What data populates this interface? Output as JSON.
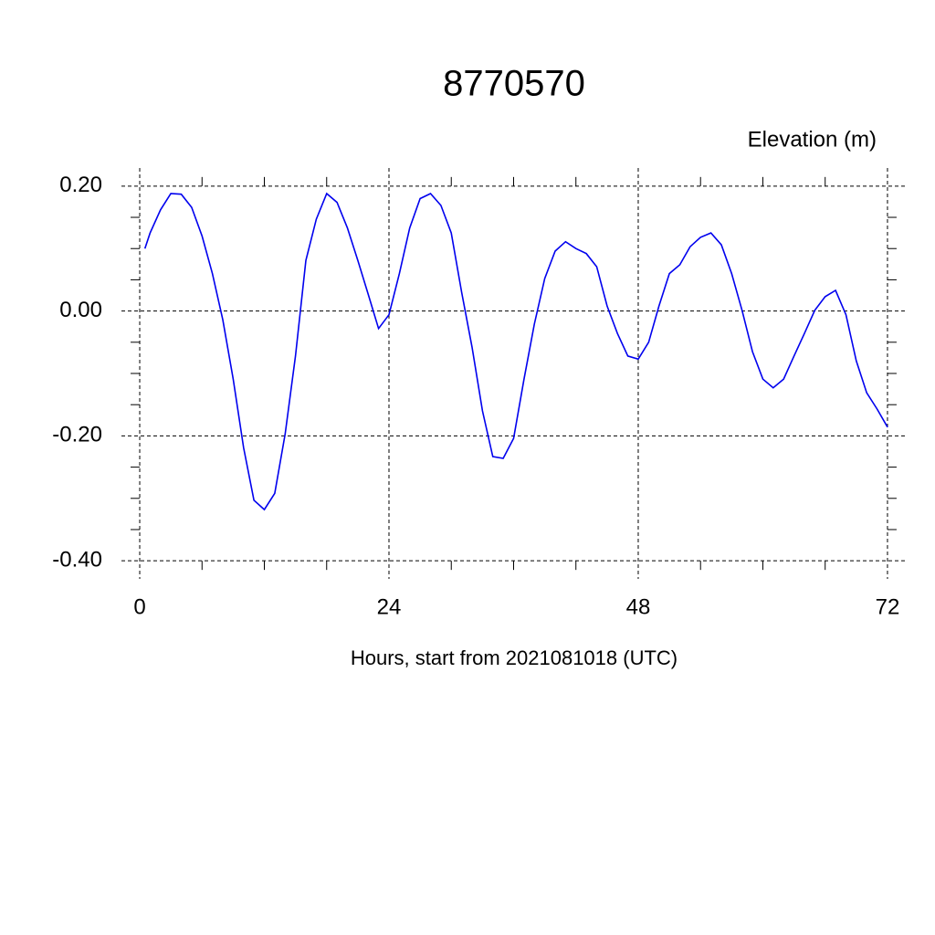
{
  "chart_data": {
    "type": "line",
    "title": "8770570",
    "y_axis_label": "Elevation (m)",
    "x_axis_label": "Hours, start from 2021081018 (UTC)",
    "x": [
      0.5,
      1,
      2,
      3,
      4,
      5,
      6,
      7,
      8,
      9,
      10,
      11,
      12,
      13,
      14,
      15,
      16,
      17,
      18,
      19,
      20,
      21,
      22,
      23,
      24,
      25,
      26,
      27,
      28,
      29,
      30,
      31,
      32,
      33,
      34,
      35,
      36,
      37,
      38,
      39,
      40,
      41,
      42,
      43,
      44,
      45,
      46,
      47,
      48,
      49,
      50,
      51,
      52,
      53,
      54,
      55,
      56,
      57,
      58,
      59,
      60,
      61,
      62,
      63,
      64,
      65,
      66,
      67,
      68,
      69,
      70,
      71,
      72
    ],
    "series": [
      {
        "name": "Elevation",
        "color": "#0000ee",
        "values": [
          0.1,
          0.125,
          0.162,
          0.188,
          0.187,
          0.166,
          0.12,
          0.06,
          -0.014,
          -0.109,
          -0.219,
          -0.303,
          -0.318,
          -0.292,
          -0.197,
          -0.072,
          0.081,
          0.147,
          0.188,
          0.174,
          0.133,
          0.081,
          0.027,
          -0.028,
          -0.006,
          0.06,
          0.133,
          0.18,
          0.188,
          0.169,
          0.125,
          0.03,
          -0.058,
          -0.16,
          -0.233,
          -0.236,
          -0.204,
          -0.109,
          -0.021,
          0.052,
          0.096,
          0.111,
          0.1,
          0.092,
          0.071,
          0.008,
          -0.036,
          -0.072,
          -0.077,
          -0.05,
          0.008,
          0.06,
          0.074,
          0.103,
          0.118,
          0.125,
          0.106,
          0.06,
          0.001,
          -0.065,
          -0.109,
          -0.123,
          -0.109,
          -0.072,
          -0.036,
          0.001,
          0.023,
          0.033,
          -0.006,
          -0.08,
          -0.131,
          -0.157,
          -0.186
        ]
      }
    ],
    "xlim": [
      -1.76,
      73.85
    ],
    "xticks": [
      0,
      24,
      48,
      72
    ],
    "xminorticks": [
      6,
      12,
      18,
      30,
      36,
      42,
      54,
      60,
      66
    ],
    "ylim": [
      -0.429,
      0.229
    ],
    "yticks": [
      {
        "value": 0.2,
        "label": "0.20"
      },
      {
        "value": 0,
        "label": "0.00"
      },
      {
        "value": -0.2,
        "label": "-0.20"
      },
      {
        "value": -0.4,
        "label": "-0.40"
      }
    ],
    "yminorticks": [
      0.15,
      0.1,
      0.05,
      -0.05,
      -0.1,
      -0.15,
      -0.25,
      -0.3,
      -0.35
    ],
    "grid": true
  }
}
